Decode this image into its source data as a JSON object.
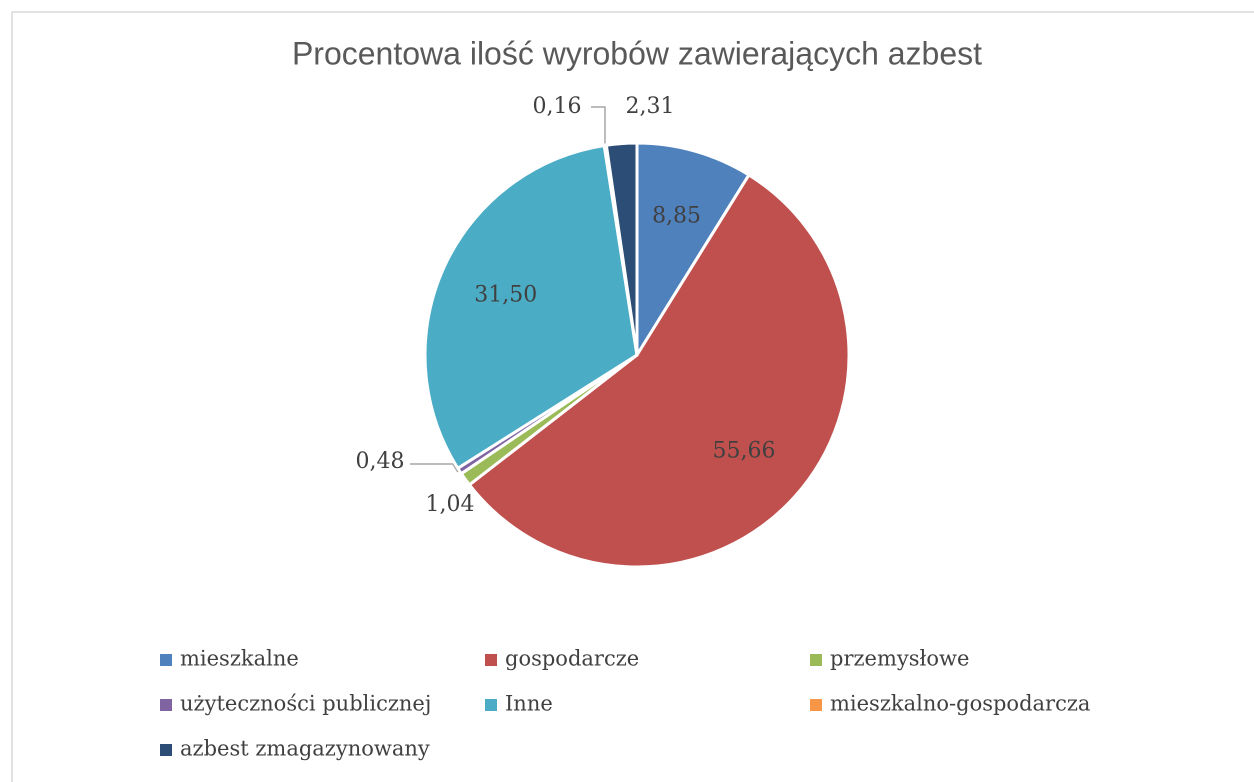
{
  "chart_data": {
    "type": "pie",
    "title": "Procentowa ilość wyrobów zawierających azbest",
    "categories": [
      "mieszkalne",
      "gospodarcze",
      "przemysłowe",
      "użyteczności publicznej",
      "Inne",
      "mieszkalno-gospodarcza",
      "azbest zmagazynowany"
    ],
    "values": [
      8.85,
      55.66,
      1.04,
      0.48,
      31.5,
      0.16,
      2.31
    ],
    "value_labels": [
      "8,85",
      "55,66",
      "1,04",
      "0,48",
      "31,50",
      "0,16",
      "2,31"
    ],
    "colors": [
      "#4f81bd",
      "#c0504d",
      "#9bbb59",
      "#8064a2",
      "#4bacc6",
      "#f79646",
      "#2c4d75"
    ],
    "legend": "bottom"
  }
}
